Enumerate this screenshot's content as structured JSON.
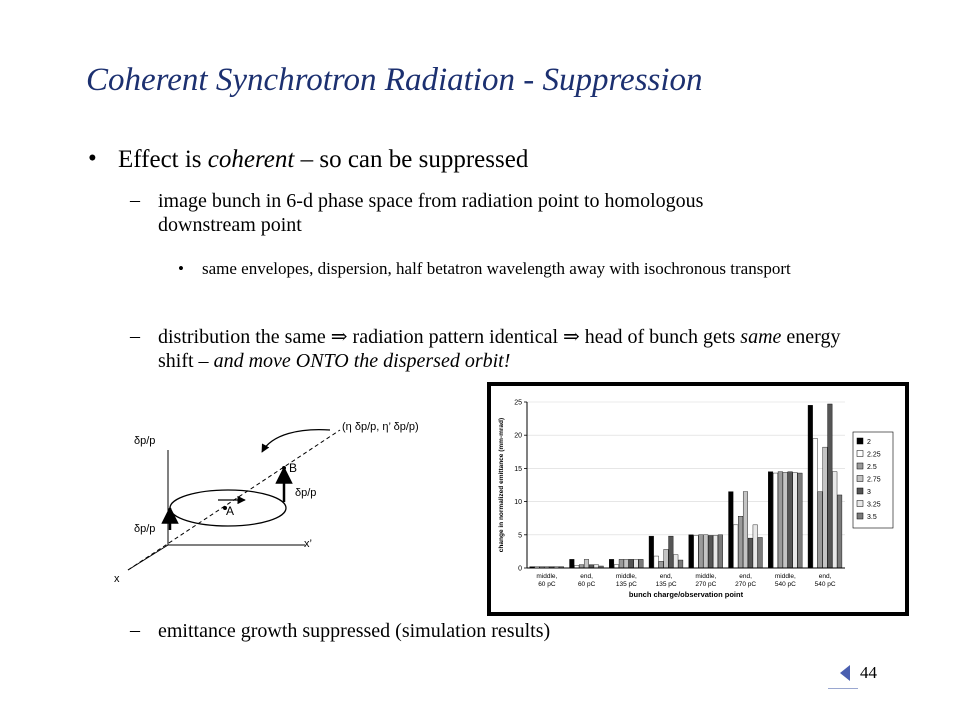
{
  "slide": {
    "title": "Coherent Synchrotron Radiation - Suppression",
    "page_number": "44",
    "bullet1": {
      "before": "Effect is ",
      "italic": "coherent",
      "after": " – so can be suppressed"
    },
    "dash": "–",
    "sub1": "image bunch in 6-d phase space from radiation point to homologous downstream point",
    "subsub1": "same envelopes, dispersion, half betatron wavelength away with isochronous transport",
    "sub2": {
      "part1": "distribution the same ",
      "arrow": "⇒",
      "part2": " radiation pattern identical ",
      "part3": " head of bunch gets ",
      "italic1": "same",
      "part4": " energy shift – ",
      "italic2": "and move ONTO the dispersed orbit!"
    },
    "sub3": "emittance growth suppressed (simulation results)"
  },
  "diagram": {
    "label_top_dp": "δp/p",
    "label_bottom_dp": "δp/p",
    "label_B_dp": "δp/p",
    "label_x": "x",
    "label_xprime": "x’",
    "label_A": "A",
    "label_B": "B",
    "label_vector": "(η δp/p, η’ δp/p)"
  },
  "chart_data": {
    "type": "bar",
    "title": "",
    "xlabel": "bunch charge/observation point",
    "ylabel": "change in normalized emittance (mm-mrad)",
    "ylim": [
      0,
      25
    ],
    "yticks": [
      0,
      5,
      10,
      15,
      20,
      25
    ],
    "legend_position": "right",
    "categories": [
      "middle, 60 pC",
      "end, 60 pC",
      "middle, 135 pC",
      "end, 135 pC",
      "middle, 270 pC",
      "end, 270 pC",
      "middle, 540 pC",
      "end, 540 pC"
    ],
    "series": [
      {
        "name": "2",
        "fill": "#000000",
        "values": [
          0.2,
          1.3,
          1.3,
          4.8,
          5.0,
          11.5,
          14.5,
          24.5
        ]
      },
      {
        "name": "2.25",
        "fill": "#ffffff",
        "values": [
          0.2,
          0.4,
          0.5,
          1.8,
          4.9,
          6.5,
          14.3,
          19.5
        ]
      },
      {
        "name": "2.5",
        "fill": "#9a9a9a",
        "values": [
          0.2,
          0.5,
          1.3,
          1.0,
          5.0,
          7.8,
          14.5,
          11.5
        ]
      },
      {
        "name": "2.75",
        "fill": "#c4c4c4",
        "values": [
          0.2,
          1.3,
          1.3,
          2.8,
          5.0,
          11.5,
          14.4,
          18.2
        ]
      },
      {
        "name": "3",
        "fill": "#555555",
        "values": [
          0.2,
          0.5,
          1.3,
          4.8,
          4.9,
          4.5,
          14.5,
          24.7
        ]
      },
      {
        "name": "3.25",
        "fill": "#e8e8e8",
        "values": [
          0.2,
          0.5,
          1.3,
          2.0,
          4.9,
          6.5,
          14.4,
          14.5
        ]
      },
      {
        "name": "3.5",
        "fill": "#7a7a7a",
        "values": [
          0.2,
          0.3,
          1.3,
          1.2,
          5.0,
          4.6,
          14.3,
          11.0
        ]
      }
    ]
  }
}
